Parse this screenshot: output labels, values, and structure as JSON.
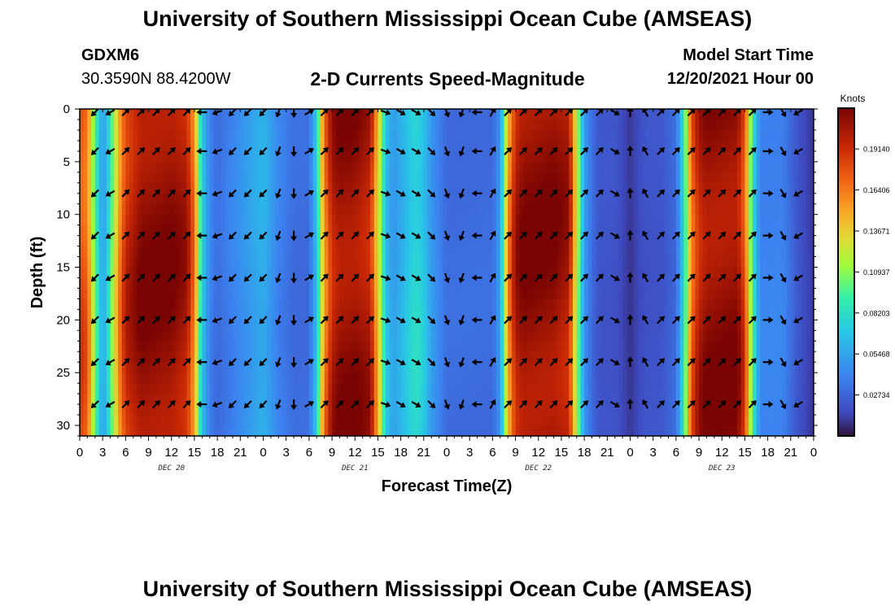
{
  "header": {
    "title": "University of Southern Mississippi Ocean Cube (AMSEAS)",
    "station": "GDXM6",
    "coords": "30.3590N  88.4200W",
    "subtitle": "2-D Currents Speed-Magnitude",
    "start_label": "Model Start Time",
    "start_value": "12/20/2021 Hour 00"
  },
  "footer": {
    "title": "University of Southern Mississippi Ocean Cube (AMSEAS)"
  },
  "colors": {
    "arrow": "#000000",
    "frame": "#000000"
  },
  "chart_data": {
    "type": "heatmap",
    "title": "2-D Currents Speed-Magnitude",
    "xlabel": "Forecast Time(Z)",
    "ylabel": "Depth (ft)",
    "x_range_hours": [
      0,
      96
    ],
    "y_range_ft": [
      0,
      31
    ],
    "x_tick_labels": [
      "0",
      "3",
      "6",
      "9",
      "12",
      "15",
      "18",
      "21",
      "0",
      "3",
      "6",
      "9",
      "12",
      "15",
      "18",
      "21",
      "0",
      "3",
      "6",
      "9",
      "12",
      "15",
      "18",
      "21",
      "0",
      "3",
      "6",
      "9",
      "12",
      "15",
      "18",
      "21",
      "0"
    ],
    "date_labels": [
      {
        "label": "DEC 20",
        "hour": 12
      },
      {
        "label": "DEC 21",
        "hour": 36
      },
      {
        "label": "DEC 22",
        "hour": 60
      },
      {
        "label": "DEC 23",
        "hour": 84
      }
    ],
    "y_ticks": [
      0,
      5,
      10,
      15,
      20,
      25,
      30
    ],
    "colorbar": {
      "unit": "Knots",
      "range": [
        0.0,
        0.2186
      ],
      "tick_labels": [
        "0.19140",
        "0.16406",
        "0.13671",
        "0.10937",
        "0.08203",
        "0.05468",
        "0.02734"
      ],
      "tick_values": [
        0.1914,
        0.16406,
        0.13671,
        0.10937,
        0.08203,
        0.05468,
        0.02734
      ]
    },
    "speed_profile": {
      "hours": [
        0,
        1,
        2,
        3,
        4,
        5,
        6,
        8,
        10,
        12,
        14,
        15,
        16,
        17,
        18,
        20,
        22,
        24,
        26,
        28,
        30,
        31,
        32,
        33,
        34,
        36,
        38,
        39,
        40,
        41,
        42,
        44,
        45,
        46,
        48,
        50,
        52,
        54,
        55,
        56,
        57,
        58,
        60,
        62,
        64,
        65,
        66,
        67,
        68,
        70,
        72,
        74,
        76,
        78,
        79,
        80,
        81,
        82,
        84,
        86,
        87,
        88,
        89,
        90,
        92,
        94,
        96
      ],
      "speeds": [
        0.18,
        0.17,
        0.1,
        0.05,
        0.09,
        0.15,
        0.19,
        0.21,
        0.21,
        0.21,
        0.2,
        0.16,
        0.07,
        0.04,
        0.03,
        0.04,
        0.05,
        0.06,
        0.04,
        0.03,
        0.03,
        0.07,
        0.16,
        0.2,
        0.21,
        0.21,
        0.2,
        0.14,
        0.07,
        0.05,
        0.06,
        0.08,
        0.07,
        0.05,
        0.03,
        0.03,
        0.03,
        0.03,
        0.05,
        0.15,
        0.2,
        0.21,
        0.21,
        0.21,
        0.2,
        0.12,
        0.05,
        0.03,
        0.02,
        0.02,
        0.01,
        0.02,
        0.02,
        0.03,
        0.08,
        0.17,
        0.2,
        0.21,
        0.21,
        0.21,
        0.18,
        0.09,
        0.04,
        0.04,
        0.04,
        0.02,
        0.01
      ]
    },
    "arrows": {
      "depths_ft": [
        0,
        4,
        8,
        12,
        16,
        20,
        24,
        28
      ],
      "hours": [
        2,
        4,
        6,
        8,
        10,
        12,
        14,
        16,
        18,
        20,
        22,
        24,
        26,
        28,
        30,
        32,
        34,
        36,
        38,
        40,
        42,
        44,
        46,
        48,
        50,
        52,
        54,
        56,
        58,
        60,
        62,
        64,
        66,
        68,
        70,
        72,
        74,
        76,
        78,
        80,
        82,
        84,
        86,
        88,
        90,
        92,
        94
      ],
      "direction_deg_by_hour": [
        225,
        240,
        45,
        45,
        45,
        45,
        45,
        270,
        250,
        225,
        225,
        225,
        200,
        180,
        60,
        45,
        45,
        45,
        45,
        110,
        120,
        120,
        135,
        160,
        200,
        270,
        30,
        45,
        45,
        45,
        45,
        45,
        45,
        45,
        120,
        0,
        330,
        45,
        45,
        45,
        45,
        45,
        45,
        45,
        90,
        150,
        240
      ]
    }
  }
}
